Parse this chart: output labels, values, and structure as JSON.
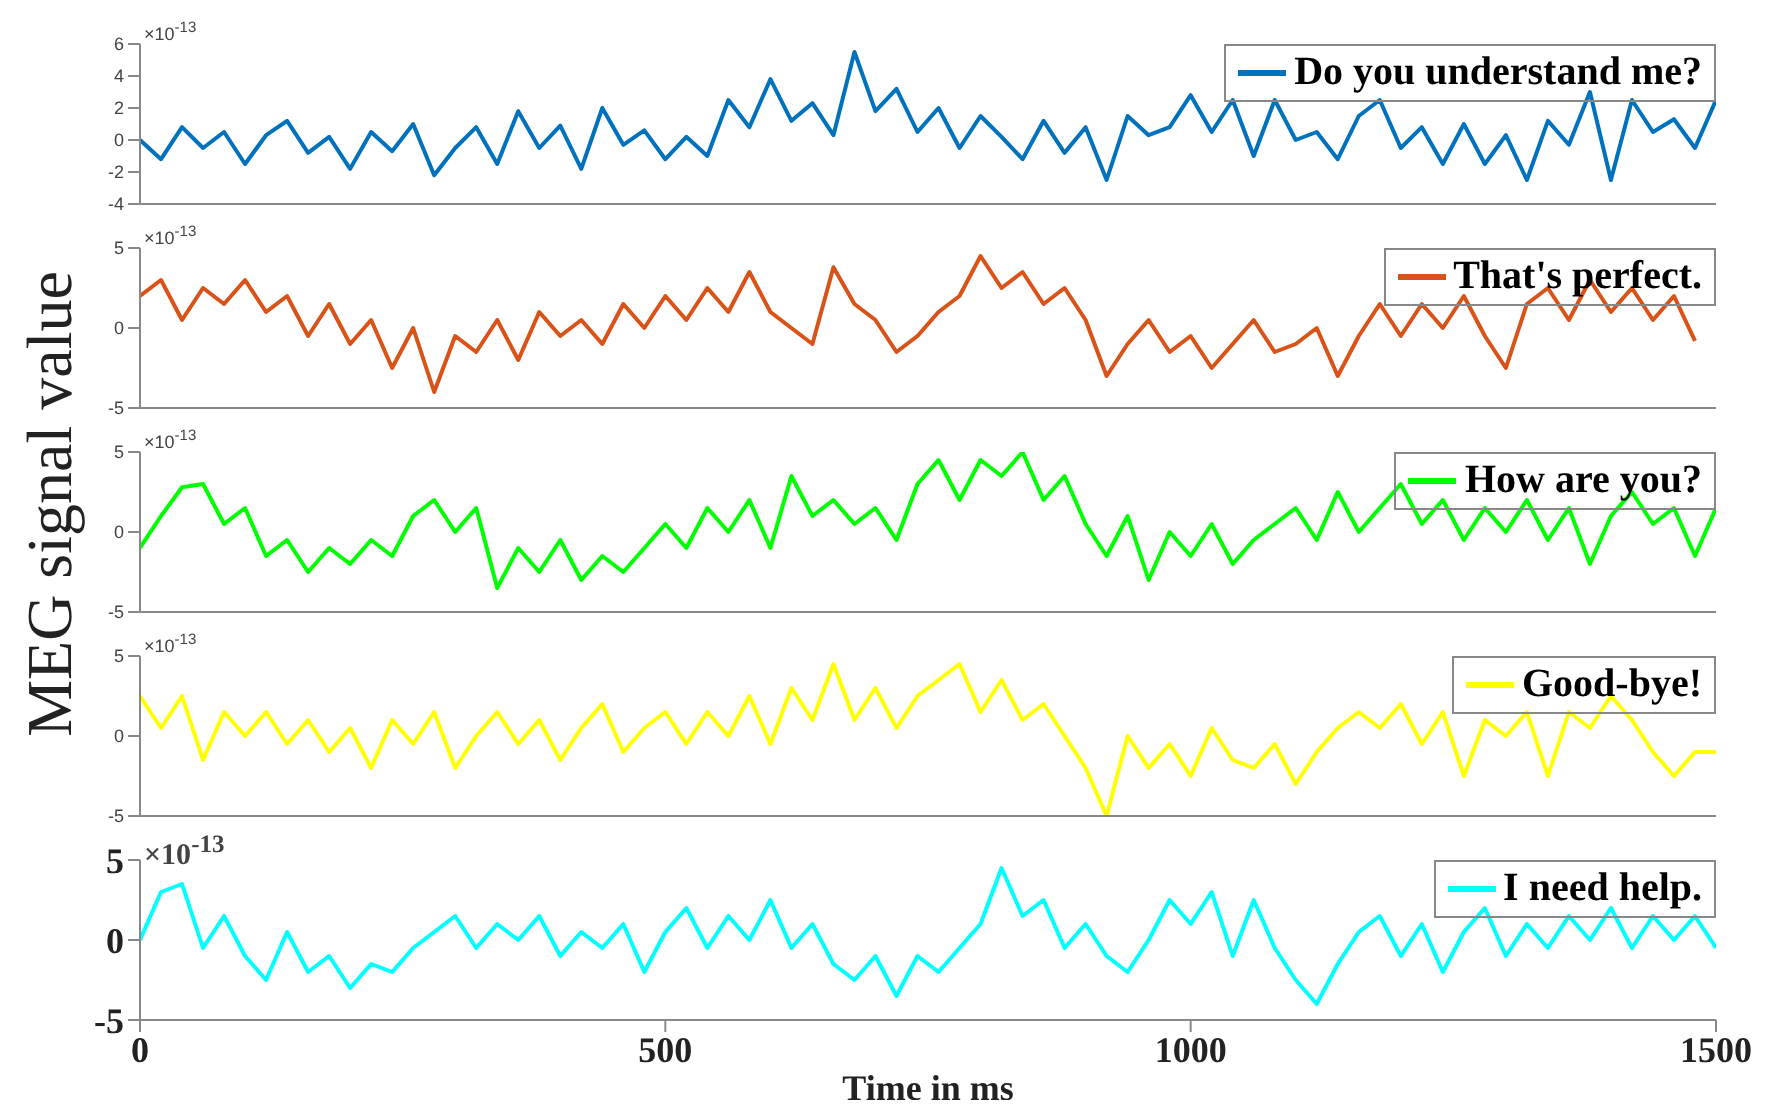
{
  "chart_data": [
    {
      "type": "line",
      "x": [
        0,
        20,
        40,
        60,
        80,
        100,
        120,
        140,
        160,
        180,
        200,
        220,
        240,
        260,
        280,
        300,
        320,
        340,
        360,
        380,
        400,
        420,
        440,
        460,
        480,
        500,
        520,
        540,
        560,
        580,
        600,
        620,
        640,
        660,
        680,
        700,
        720,
        740,
        760,
        780,
        800,
        820,
        840,
        860,
        880,
        900,
        920,
        940,
        960,
        980,
        1000,
        1020,
        1040,
        1060,
        1080,
        1100,
        1120,
        1140,
        1160,
        1180,
        1200,
        1220,
        1240,
        1260,
        1280,
        1300,
        1320,
        1340,
        1360,
        1380,
        1400,
        1420,
        1440,
        1460,
        1480,
        1500
      ],
      "xlim": [
        0,
        1500
      ],
      "xticks": [
        0,
        500,
        1000,
        1500
      ],
      "ylim": [
        -4,
        6
      ],
      "yticks": [
        -4,
        -2,
        0,
        2,
        4,
        6
      ],
      "tick_labels": "y",
      "legend": "top right",
      "annotations": [
        "×10$^{-13}$"
      ],
      "series": [
        {
          "name": "Do you understand me?",
          "color": "#0072bd",
          "values": [
            0,
            -1.2,
            0.8,
            -0.5,
            0.5,
            -1.5,
            0.3,
            1.2,
            -0.8,
            0.2,
            -1.8,
            0.5,
            -0.7,
            1,
            -2.2,
            -0.5,
            0.8,
            -1.5,
            1.8,
            -0.5,
            0.9,
            -1.8,
            2,
            -0.3,
            0.6,
            -1.2,
            0.2,
            -1,
            2.5,
            0.8,
            3.8,
            1.2,
            2.3,
            0.3,
            5.5,
            1.8,
            3.2,
            0.5,
            2,
            -0.5,
            1.5,
            0.2,
            -1.2,
            1.2,
            -0.8,
            0.8,
            -2.5,
            1.5,
            0.3,
            0.8,
            2.8,
            0.5,
            2.5,
            -1,
            2.5,
            0,
            0.5,
            -1.2,
            1.5,
            2.5,
            -0.5,
            0.8,
            -1.5,
            1,
            -1.5,
            0.3,
            -2.5,
            1.2,
            -0.3,
            3,
            -2.5,
            2.5,
            0.5,
            1.3,
            -0.5,
            2.5
          ]
        }
      ]
    },
    {
      "type": "line",
      "xlim": [
        0,
        1500
      ],
      "xticks": [
        0,
        500,
        1000,
        1500
      ],
      "ylim": [
        -5,
        5
      ],
      "yticks": [
        -5,
        0,
        5
      ],
      "tick_labels": "y",
      "legend": "top right",
      "annotations": [
        "×10$^{-13}$"
      ],
      "series": [
        {
          "name": "That's perfect.",
          "color": "#d95319",
          "x": [
            0,
            20,
            40,
            60,
            80,
            100,
            120,
            140,
            160,
            180,
            200,
            220,
            240,
            260,
            280,
            300,
            320,
            340,
            360,
            380,
            400,
            420,
            440,
            460,
            480,
            500,
            520,
            540,
            560,
            580,
            600,
            620,
            640,
            660,
            680,
            700,
            720,
            740,
            760,
            780,
            800,
            820,
            840,
            860,
            880,
            900,
            920,
            940,
            960,
            980,
            1000,
            1020,
            1040,
            1060,
            1080,
            1100,
            1120,
            1140,
            1160,
            1180,
            1200,
            1220,
            1240,
            1260,
            1280,
            1300,
            1320,
            1340,
            1360,
            1380,
            1400,
            1420,
            1440,
            1460,
            1480
          ],
          "values": [
            2,
            3,
            0.5,
            2.5,
            1.5,
            3,
            1,
            2,
            -0.5,
            1.5,
            -1,
            0.5,
            -2.5,
            0,
            -4,
            -0.5,
            -1.5,
            0.5,
            -2,
            1,
            -0.5,
            0.5,
            -1,
            1.5,
            0,
            2,
            0.5,
            2.5,
            1,
            3.5,
            1,
            0,
            -1,
            3.8,
            1.5,
            0.5,
            -1.5,
            -0.5,
            1,
            2,
            4.5,
            2.5,
            3.5,
            1.5,
            2.5,
            0.5,
            -3,
            -1,
            0.5,
            -1.5,
            -0.5,
            -2.5,
            -1,
            0.5,
            -1.5,
            -1,
            0,
            -3,
            -0.5,
            1.5,
            -0.5,
            1.5,
            0,
            2,
            -0.5,
            -2.5,
            1.5,
            2.5,
            0.5,
            3,
            1,
            2.5,
            0.5,
            2,
            -0.8
          ]
        }
      ]
    },
    {
      "type": "line",
      "x": [
        0,
        20,
        40,
        60,
        80,
        100,
        120,
        140,
        160,
        180,
        200,
        220,
        240,
        260,
        280,
        300,
        320,
        340,
        360,
        380,
        400,
        420,
        440,
        460,
        480,
        500,
        520,
        540,
        560,
        580,
        600,
        620,
        640,
        660,
        680,
        700,
        720,
        740,
        760,
        780,
        800,
        820,
        840,
        860,
        880,
        900,
        920,
        940,
        960,
        980,
        1000,
        1020,
        1040,
        1060,
        1080,
        1100,
        1120,
        1140,
        1160,
        1180,
        1200,
        1220,
        1240,
        1260,
        1280,
        1300,
        1320,
        1340,
        1360,
        1380,
        1400,
        1420,
        1440,
        1460,
        1480,
        1500
      ],
      "xlim": [
        0,
        1500
      ],
      "xticks": [
        0,
        500,
        1000,
        1500
      ],
      "ylim": [
        -5,
        5
      ],
      "yticks": [
        -5,
        0,
        5
      ],
      "tick_labels": "y",
      "legend": "top right",
      "annotations": [
        "×10$^{-13}$"
      ],
      "ylabel": "MEG signal value",
      "series": [
        {
          "name": "How are you?",
          "color": "#00ff00",
          "values": [
            -1,
            1,
            2.8,
            3,
            0.5,
            1.5,
            -1.5,
            -0.5,
            -2.5,
            -1,
            -2,
            -0.5,
            -1.5,
            1,
            2,
            0,
            1.5,
            -3.5,
            -1,
            -2.5,
            -0.5,
            -3,
            -1.5,
            -2.5,
            -1,
            0.5,
            -1,
            1.5,
            0,
            2,
            -1,
            3.5,
            1,
            2,
            0.5,
            1.5,
            -0.5,
            3,
            4.5,
            2,
            4.5,
            3.5,
            5,
            2,
            3.5,
            0.5,
            -1.5,
            1,
            -3,
            0,
            -1.5,
            0.5,
            -2,
            -0.5,
            0.5,
            1.5,
            -0.5,
            2.5,
            0,
            1.5,
            3,
            0.5,
            2,
            -0.5,
            1.5,
            0,
            2,
            -0.5,
            1.5,
            -2,
            1,
            2.5,
            0.5,
            1.5,
            -1.5,
            1.5
          ]
        }
      ]
    },
    {
      "type": "line",
      "x": [
        0,
        20,
        40,
        60,
        80,
        100,
        120,
        140,
        160,
        180,
        200,
        220,
        240,
        260,
        280,
        300,
        320,
        340,
        360,
        380,
        400,
        420,
        440,
        460,
        480,
        500,
        520,
        540,
        560,
        580,
        600,
        620,
        640,
        660,
        680,
        700,
        720,
        740,
        760,
        780,
        800,
        820,
        840,
        860,
        880,
        900,
        920,
        940,
        960,
        980,
        1000,
        1020,
        1040,
        1060,
        1080,
        1100,
        1120,
        1140,
        1160,
        1180,
        1200,
        1220,
        1240,
        1260,
        1280,
        1300,
        1320,
        1340,
        1360,
        1380,
        1400,
        1420,
        1440,
        1460,
        1480,
        1500
      ],
      "xlim": [
        0,
        1500
      ],
      "xticks": [
        0,
        500,
        1000,
        1500
      ],
      "ylim": [
        -5,
        5
      ],
      "yticks": [
        -5,
        0,
        5
      ],
      "tick_labels": "y",
      "legend": "top right",
      "annotations": [
        "×10$^{-13}$"
      ],
      "series": [
        {
          "name": "Good-bye!",
          "color": "#ffff00",
          "values": [
            2.5,
            0.5,
            2.5,
            -1.5,
            1.5,
            0,
            1.5,
            -0.5,
            1,
            -1,
            0.5,
            -2,
            1,
            -0.5,
            1.5,
            -2,
            0,
            1.5,
            -0.5,
            1,
            -1.5,
            0.5,
            2,
            -1,
            0.5,
            1.5,
            -0.5,
            1.5,
            0,
            2.5,
            -0.5,
            3,
            1,
            4.5,
            1,
            3,
            0.5,
            2.5,
            3.5,
            4.5,
            1.5,
            3.5,
            1,
            2,
            0,
            -2,
            -5,
            0,
            -2,
            -0.5,
            -2.5,
            0.5,
            -1.5,
            -2,
            -0.5,
            -3,
            -1,
            0.5,
            1.5,
            0.5,
            2,
            -0.5,
            1.5,
            -2.5,
            1,
            0,
            1.5,
            -2.5,
            1.5,
            0.5,
            2.5,
            1,
            -1,
            -2.5,
            -1,
            -1
          ]
        }
      ]
    },
    {
      "type": "line",
      "x": [
        0,
        20,
        40,
        60,
        80,
        100,
        120,
        140,
        160,
        180,
        200,
        220,
        240,
        260,
        280,
        300,
        320,
        340,
        360,
        380,
        400,
        420,
        440,
        460,
        480,
        500,
        520,
        540,
        560,
        580,
        600,
        620,
        640,
        660,
        680,
        700,
        720,
        740,
        760,
        780,
        800,
        820,
        840,
        860,
        880,
        900,
        920,
        940,
        960,
        980,
        1000,
        1020,
        1040,
        1060,
        1080,
        1100,
        1120,
        1140,
        1160,
        1180,
        1200,
        1220,
        1240,
        1260,
        1280,
        1300,
        1320,
        1340,
        1360,
        1380,
        1400,
        1420,
        1440,
        1460,
        1480,
        1500
      ],
      "xlim": [
        0,
        1500
      ],
      "xticks": [
        0,
        500,
        1000,
        1500
      ],
      "ylim": [
        -5,
        5
      ],
      "yticks": [
        -5,
        0,
        5
      ],
      "legend": "top right",
      "annotations": [
        "×10$^{-13}$"
      ],
      "xlabel": "Time in ms",
      "series": [
        {
          "name": "I need help.",
          "color": "#00ffff",
          "values": [
            0,
            3,
            3.5,
            -0.5,
            1.5,
            -1,
            -2.5,
            0.5,
            -2,
            -1,
            -3,
            -1.5,
            -2,
            -0.5,
            0.5,
            1.5,
            -0.5,
            1,
            0,
            1.5,
            -1,
            0.5,
            -0.5,
            1,
            -2,
            0.5,
            2,
            -0.5,
            1.5,
            0,
            2.5,
            -0.5,
            1,
            -1.5,
            -2.5,
            -1,
            -3.5,
            -1,
            -2,
            -0.5,
            1,
            4.5,
            1.5,
            2.5,
            -0.5,
            1,
            -1,
            -2,
            0,
            2.5,
            1,
            3,
            -1,
            2.5,
            -0.5,
            -2.5,
            -4,
            -1.5,
            0.5,
            1.5,
            -1,
            1,
            -2,
            0.5,
            2,
            -1,
            1,
            -0.5,
            1.5,
            0,
            2,
            -0.5,
            1.5,
            0,
            1.5,
            -0.5
          ]
        }
      ]
    }
  ]
}
